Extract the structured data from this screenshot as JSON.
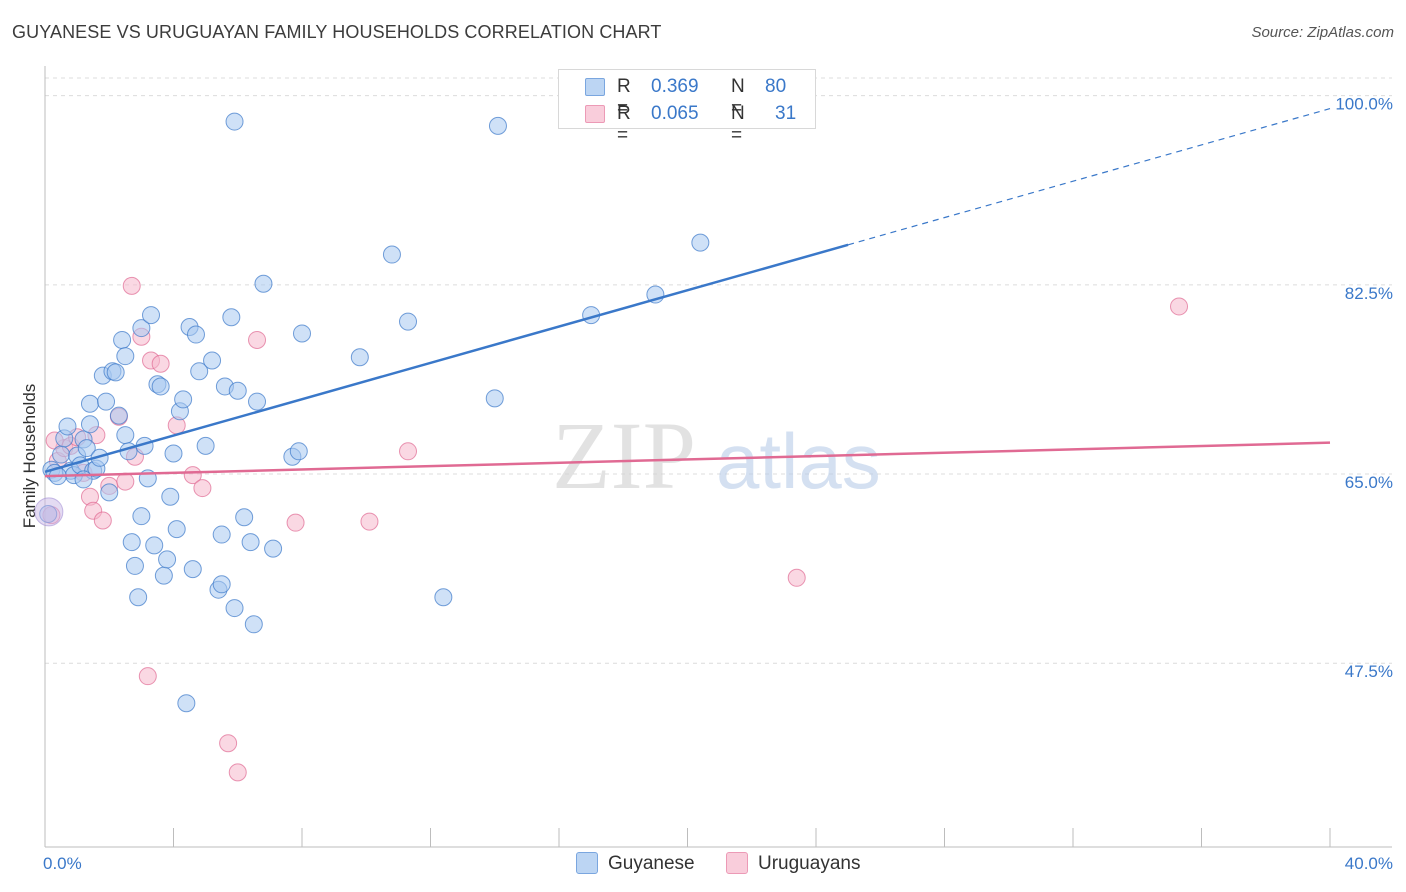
{
  "title": "GUYANESE VS URUGUAYAN FAMILY HOUSEHOLDS CORRELATION CHART",
  "source": "Source: ZipAtlas.com",
  "colors": {
    "blue": "#3a78c9",
    "blue_fill": "#a8c8f0",
    "pink": "#e06a93",
    "pink_fill": "#f6b8cc",
    "grid": "#dcdcdc"
  },
  "legend": {
    "rows": [
      {
        "r_label": "R =",
        "r_value": "0.369",
        "n_label": "N =",
        "n_value": "80"
      },
      {
        "r_label": "R =",
        "r_value": "0.065",
        "n_label": "N =",
        "n_value": "31"
      }
    ]
  },
  "watermark": {
    "zip": "ZIP",
    "atlas": "atlas"
  },
  "chart_data": {
    "type": "scatter",
    "title": "GUYANESE VS URUGUAYAN FAMILY HOUSEHOLDS CORRELATION CHART",
    "xlabel": "",
    "ylabel": "Family Households",
    "xlim": [
      0,
      40
    ],
    "ylim": [
      30.5,
      102
    ],
    "x_ticks": [
      {
        "value": 0,
        "label": "0.0%"
      },
      {
        "value": 40,
        "label": "40.0%"
      }
    ],
    "y_ticks": [
      {
        "value": 100,
        "label": "100.0%"
      },
      {
        "value": 82.5,
        "label": "82.5%"
      },
      {
        "value": 65,
        "label": "65.0%"
      },
      {
        "value": 47.5,
        "label": "47.5%"
      }
    ],
    "grid": true,
    "legend_position": "top-center",
    "series": [
      {
        "name": "Guyanese",
        "color": "blue",
        "trend": {
          "x0": 0,
          "y0": 65.2,
          "x1": 25,
          "y1": 86.2,
          "dash_x1": 40,
          "dash_y1": 98.8
        },
        "points": [
          [
            0.2,
            65.4
          ],
          [
            0.3,
            65.1
          ],
          [
            0.5,
            66.8
          ],
          [
            0.6,
            68.3
          ],
          [
            0.7,
            69.4
          ],
          [
            0.8,
            65.3
          ],
          [
            0.9,
            64.9
          ],
          [
            1.0,
            66.7
          ],
          [
            1.1,
            65.8
          ],
          [
            1.2,
            68.2
          ],
          [
            1.3,
            67.4
          ],
          [
            1.4,
            71.5
          ],
          [
            1.4,
            69.6
          ],
          [
            1.5,
            65.3
          ],
          [
            1.6,
            65.5
          ],
          [
            1.7,
            66.5
          ],
          [
            1.8,
            74.1
          ],
          [
            1.9,
            71.7
          ],
          [
            2.1,
            74.5
          ],
          [
            2.2,
            74.4
          ],
          [
            2.3,
            70.4
          ],
          [
            2.4,
            77.4
          ],
          [
            2.5,
            75.9
          ],
          [
            2.5,
            68.6
          ],
          [
            2.6,
            67.1
          ],
          [
            2.7,
            58.7
          ],
          [
            2.8,
            56.5
          ],
          [
            2.9,
            53.6
          ],
          [
            3.0,
            78.5
          ],
          [
            3.1,
            67.6
          ],
          [
            3.2,
            64.6
          ],
          [
            3.3,
            79.7
          ],
          [
            3.5,
            73.3
          ],
          [
            3.6,
            73.1
          ],
          [
            3.7,
            55.6
          ],
          [
            3.8,
            57.1
          ],
          [
            3.9,
            62.9
          ],
          [
            4.0,
            66.9
          ],
          [
            4.1,
            59.9
          ],
          [
            4.2,
            70.8
          ],
          [
            4.3,
            71.9
          ],
          [
            4.4,
            43.8
          ],
          [
            4.5,
            78.6
          ],
          [
            4.6,
            56.2
          ],
          [
            4.7,
            77.9
          ],
          [
            4.8,
            74.5
          ],
          [
            5.0,
            67.6
          ],
          [
            5.2,
            75.5
          ],
          [
            5.4,
            54.3
          ],
          [
            5.5,
            59.4
          ],
          [
            5.6,
            73.1
          ],
          [
            5.8,
            79.5
          ],
          [
            5.9,
            52.6
          ],
          [
            6.0,
            72.7
          ],
          [
            6.2,
            61.0
          ],
          [
            6.4,
            58.7
          ],
          [
            6.5,
            51.1
          ],
          [
            6.6,
            71.7
          ],
          [
            6.8,
            82.6
          ],
          [
            7.7,
            66.6
          ],
          [
            7.9,
            67.1
          ],
          [
            8.0,
            78.0
          ],
          [
            9.8,
            75.8
          ],
          [
            10.8,
            85.3
          ],
          [
            11.3,
            79.1
          ],
          [
            12.4,
            53.6
          ],
          [
            14.0,
            72.0
          ],
          [
            14.1,
            97.2
          ],
          [
            17.0,
            79.7
          ],
          [
            19.0,
            81.6
          ],
          [
            20.4,
            86.4
          ],
          [
            5.9,
            97.6
          ],
          [
            0.1,
            61.3
          ],
          [
            0.4,
            64.8
          ],
          [
            1.2,
            64.5
          ],
          [
            2.0,
            63.3
          ],
          [
            3.4,
            58.4
          ],
          [
            5.5,
            54.8
          ],
          [
            7.1,
            58.1
          ],
          [
            3.0,
            61.1
          ]
        ]
      },
      {
        "name": "Uruguayans",
        "color": "pink",
        "trend": {
          "x0": 0,
          "y0": 64.8,
          "x1": 40,
          "y1": 67.9
        },
        "points": [
          [
            0.2,
            61.2
          ],
          [
            0.4,
            66.2
          ],
          [
            0.6,
            67.4
          ],
          [
            0.8,
            67.6
          ],
          [
            1.0,
            68.4
          ],
          [
            1.2,
            65.1
          ],
          [
            1.4,
            62.9
          ],
          [
            1.5,
            61.6
          ],
          [
            1.8,
            60.7
          ],
          [
            2.0,
            63.9
          ],
          [
            2.3,
            70.3
          ],
          [
            2.5,
            64.3
          ],
          [
            2.7,
            82.4
          ],
          [
            2.8,
            66.6
          ],
          [
            3.0,
            77.7
          ],
          [
            3.2,
            46.3
          ],
          [
            3.3,
            75.5
          ],
          [
            3.6,
            75.2
          ],
          [
            4.1,
            69.5
          ],
          [
            4.6,
            64.9
          ],
          [
            4.9,
            63.7
          ],
          [
            5.7,
            40.1
          ],
          [
            6.0,
            37.4
          ],
          [
            6.6,
            77.4
          ],
          [
            7.8,
            60.5
          ],
          [
            10.1,
            60.6
          ],
          [
            11.3,
            67.1
          ],
          [
            23.4,
            55.4
          ],
          [
            35.3,
            80.5
          ],
          [
            0.3,
            68.1
          ],
          [
            1.6,
            68.6
          ]
        ]
      }
    ]
  },
  "bottom_legend": [
    "Guyanese",
    "Uruguayans"
  ]
}
